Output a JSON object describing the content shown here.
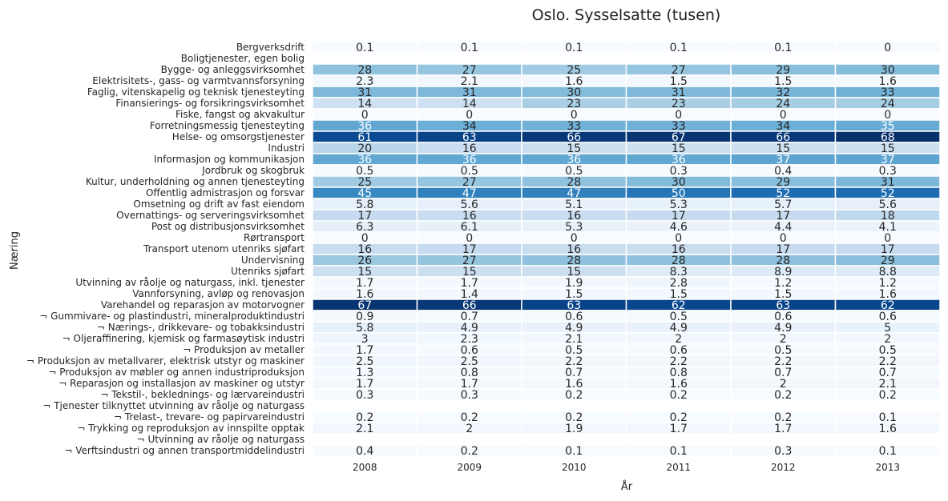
{
  "chart_data": {
    "type": "heatmap",
    "title": "Oslo. Sysselsatte (tusen)",
    "xlabel": "År",
    "ylabel": "Næring",
    "columns": [
      "2008",
      "2009",
      "2010",
      "2011",
      "2012",
      "2013"
    ],
    "color_scale": "Blues",
    "color_range": [
      0,
      68
    ],
    "rows": [
      {
        "label": "Bergverksdrift",
        "values": [
          0.1,
          0.1,
          0.1,
          0.1,
          0.1,
          0
        ]
      },
      {
        "label": "Boligtjenester, egen bolig",
        "values": [
          null,
          null,
          null,
          null,
          null,
          null
        ]
      },
      {
        "label": "Bygge- og anleggsvirksomhet",
        "values": [
          28,
          27,
          25,
          27,
          29,
          30
        ]
      },
      {
        "label": "Elektrisitets-, gass- og varmtvannsforsyning",
        "values": [
          2.3,
          2.1,
          1.6,
          1.5,
          1.5,
          1.6
        ]
      },
      {
        "label": "Faglig, vitenskapelig og teknisk tjenesteyting",
        "values": [
          31,
          31,
          30,
          31,
          32,
          33
        ]
      },
      {
        "label": "Finansierings- og forsikringsvirksomhet",
        "values": [
          14,
          14,
          23,
          23,
          24,
          24
        ]
      },
      {
        "label": "Fiske, fangst og akvakultur",
        "values": [
          0,
          0,
          0,
          0,
          0,
          0
        ]
      },
      {
        "label": "Forretningsmessig tjenesteyting",
        "values": [
          36,
          34,
          33,
          33,
          34,
          35
        ]
      },
      {
        "label": "Helse- og omsorgstjenester",
        "values": [
          61,
          63,
          66,
          67,
          66,
          68
        ]
      },
      {
        "label": "Industri",
        "values": [
          20,
          16,
          15,
          15,
          15,
          15
        ]
      },
      {
        "label": "Informasjon og kommunikasjon",
        "values": [
          36,
          36,
          36,
          36,
          37,
          37
        ]
      },
      {
        "label": "Jordbruk og skogbruk",
        "values": [
          0.5,
          0.5,
          0.5,
          0.3,
          0.4,
          0.3
        ]
      },
      {
        "label": "Kultur, underholdning og annen tjenesteyting",
        "values": [
          25,
          27,
          28,
          30,
          29,
          31
        ]
      },
      {
        "label": "Offentlig admistrasjon og forsvar",
        "values": [
          45,
          47,
          47,
          50,
          52,
          52
        ]
      },
      {
        "label": "Omsetning og drift av fast eiendom",
        "values": [
          5.8,
          5.6,
          5.1,
          5.3,
          5.7,
          5.6
        ]
      },
      {
        "label": "Overnattings- og serveringsvirksomhet",
        "values": [
          17,
          16,
          16,
          17,
          17,
          18
        ]
      },
      {
        "label": "Post og distribusjonsvirksomhet",
        "values": [
          6.3,
          6.1,
          5.3,
          4.6,
          4.4,
          4.1
        ]
      },
      {
        "label": "Rørtransport",
        "values": [
          0,
          0,
          0,
          0,
          0,
          0
        ]
      },
      {
        "label": "Transport utenom utenriks sjøfart",
        "values": [
          16,
          17,
          16,
          16,
          17,
          17
        ]
      },
      {
        "label": "Undervisning",
        "values": [
          26,
          27,
          28,
          28,
          28,
          29
        ]
      },
      {
        "label": "Utenriks sjøfart",
        "values": [
          15,
          15,
          15,
          8.3,
          8.9,
          8.8
        ]
      },
      {
        "label": "Utvinning av råolje og naturgass, inkl. tjenester",
        "values": [
          1.7,
          1.7,
          1.9,
          2.8,
          1.2,
          1.2
        ]
      },
      {
        "label": "Vannforsyning, avløp og renovasjon",
        "values": [
          1.6,
          1.4,
          1.5,
          1.5,
          1.5,
          1.6
        ]
      },
      {
        "label": "Varehandel og reparasjon av motorvogner",
        "values": [
          67,
          66,
          63,
          62,
          63,
          62
        ]
      },
      {
        "label": "¬ Gummivare- og plastindustri, mineralproduktindustri",
        "values": [
          0.9,
          0.7,
          0.6,
          0.5,
          0.6,
          0.6
        ]
      },
      {
        "label": "¬ Nærings-, drikkevare- og tobakksindustri",
        "values": [
          5.8,
          4.9,
          4.9,
          4.9,
          4.9,
          5
        ]
      },
      {
        "label": "¬ Oljeraffinering, kjemisk og farmasøytisk industri",
        "values": [
          3,
          2.3,
          2.1,
          2,
          2,
          2
        ]
      },
      {
        "label": "¬ Produksjon av metaller",
        "values": [
          1.7,
          0.6,
          0.5,
          0.6,
          0.5,
          0.5
        ]
      },
      {
        "label": "¬ Produksjon av metallvarer, elektrisk utstyr og maskiner",
        "values": [
          2.5,
          2.5,
          2.2,
          2.2,
          2.2,
          2.2
        ]
      },
      {
        "label": "¬ Produksjon av møbler og annen industriproduksjon",
        "values": [
          1.3,
          0.8,
          0.7,
          0.8,
          0.7,
          0.7
        ]
      },
      {
        "label": "¬ Reparasjon og installasjon av maskiner og utstyr",
        "values": [
          1.7,
          1.7,
          1.6,
          1.6,
          2,
          2.1
        ]
      },
      {
        "label": "¬ Tekstil-, beklednings- og lærvareindustri",
        "values": [
          0.3,
          0.3,
          0.2,
          0.2,
          0.2,
          0.2
        ]
      },
      {
        "label": "¬ Tjenester tilknyttet utvinning av råolje og naturgass",
        "values": [
          null,
          null,
          null,
          null,
          null,
          null
        ]
      },
      {
        "label": "¬ Trelast-, trevare- og papirvareindustri",
        "values": [
          0.2,
          0.2,
          0.2,
          0.2,
          0.2,
          0.1
        ]
      },
      {
        "label": "¬ Trykking og reproduksjon av innspilte opptak",
        "values": [
          2.1,
          2,
          1.9,
          1.7,
          1.7,
          1.6
        ]
      },
      {
        "label": "¬ Utvinning av råolje og naturgass",
        "values": [
          null,
          null,
          null,
          null,
          null,
          null
        ]
      },
      {
        "label": "¬ Verftsindustri og annen transportmiddelindustri",
        "values": [
          0.4,
          0.2,
          0.1,
          0.1,
          0.3,
          0.1
        ]
      }
    ]
  }
}
